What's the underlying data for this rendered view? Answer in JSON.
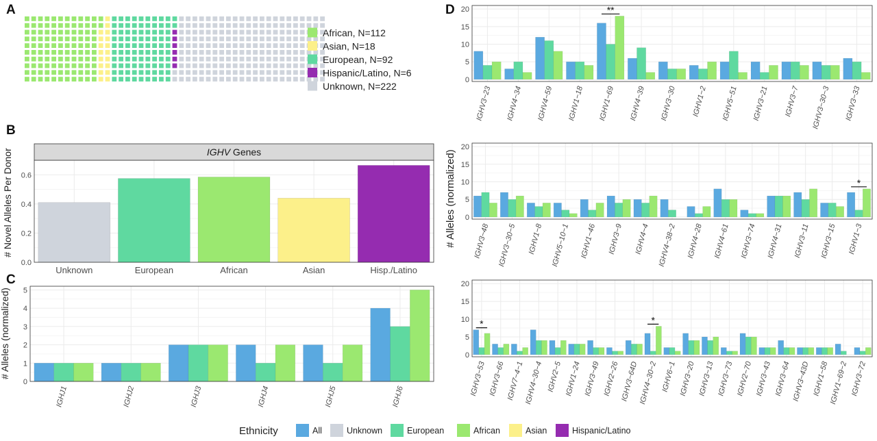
{
  "colors": {
    "All": "#5aa9e0",
    "Unknown": "#cfd4dc",
    "European": "#5fd9a0",
    "African": "#9be870",
    "Asian": "#fcf08a",
    "Hispanic/Latino": "#952cb0",
    "grid": "#ebebeb",
    "panel_border": "#333333"
  },
  "panel_labels": [
    "A",
    "B",
    "C",
    "D"
  ],
  "legend_bottom": {
    "title": "Ethnicity",
    "items": [
      "All",
      "Unknown",
      "European",
      "African",
      "Asian",
      "Hispanic/Latino"
    ]
  },
  "chart_data": [
    {
      "id": "A",
      "type": "waffle",
      "legend": [
        {
          "label": "African, N=112",
          "group": "African",
          "count": 112
        },
        {
          "label": "Asian, N=18",
          "group": "Asian",
          "count": 18
        },
        {
          "label": "European, N=92",
          "group": "European",
          "count": 92
        },
        {
          "label": "Hispanic/Latino, N=6",
          "group": "Hispanic/Latino",
          "count": 6
        },
        {
          "label": "Unknown, N=222",
          "group": "Unknown",
          "count": 222
        }
      ]
    },
    {
      "id": "B",
      "type": "bar",
      "strip_italic": "IGHV",
      "strip_rest": " Genes",
      "ylabel": "# Novel Alleles Per Donor",
      "ylim": [
        0,
        0.7
      ],
      "yticks": [
        "0.0",
        "0.2",
        "0.4",
        "0.6"
      ],
      "categories": [
        "Unknown",
        "European",
        "African",
        "Asian",
        "Hisp./Latino"
      ],
      "groups": [
        "Unknown",
        "European",
        "African",
        "Asian",
        "Hispanic/Latino"
      ],
      "values": [
        0.41,
        0.575,
        0.585,
        0.44,
        0.665
      ]
    },
    {
      "id": "C",
      "type": "bar",
      "ylabel": "# Alleles (normalized)",
      "ylim": [
        0,
        5.2
      ],
      "yticks": [
        "0",
        "1",
        "2",
        "3",
        "4",
        "5"
      ],
      "categories": [
        "IGHJ1",
        "IGHJ2",
        "IGHJ3",
        "IGHJ4",
        "IGHJ5",
        "IGHJ6"
      ],
      "series": [
        {
          "name": "All",
          "values": [
            1,
            1,
            2,
            2,
            2,
            4
          ]
        },
        {
          "name": "European",
          "values": [
            1,
            1,
            2,
            1,
            1,
            3
          ]
        },
        {
          "name": "African",
          "values": [
            1,
            1,
            2,
            2,
            2,
            5
          ]
        }
      ]
    },
    {
      "id": "D1",
      "type": "bar",
      "ylim": [
        0,
        21
      ],
      "yticks": [
        "0",
        "5",
        "10",
        "15",
        "20"
      ],
      "categories": [
        "IGHV3−23",
        "IGHV4−34",
        "IGHV4−59",
        "IGHV1−18",
        "IGHV1−69",
        "IGHV4−39",
        "IGHV3−30",
        "IGHV1−2",
        "IGHV5−51",
        "IGHV3−21",
        "IGHV3−7",
        "IGHV3−30−3",
        "IGHV3−33"
      ],
      "series": [
        {
          "name": "All",
          "values": [
            8,
            3,
            12,
            5,
            16,
            6,
            5,
            4,
            5,
            5,
            5,
            5,
            6
          ]
        },
        {
          "name": "European",
          "values": [
            4,
            5,
            11,
            5,
            10,
            9,
            3,
            3,
            8,
            2,
            5,
            4,
            5
          ]
        },
        {
          "name": "African",
          "values": [
            5,
            2,
            8,
            4,
            18,
            2,
            3,
            5,
            2,
            4,
            4,
            4,
            2
          ]
        }
      ],
      "significance": [
        {
          "category": 4,
          "label": "**"
        }
      ]
    },
    {
      "id": "D2",
      "type": "bar",
      "ylabel": "# Alleles (normalized)",
      "ylim": [
        0,
        21
      ],
      "yticks": [
        "0",
        "5",
        "10",
        "15",
        "20"
      ],
      "categories": [
        "IGHV3−48",
        "IGHV3−30−5",
        "IGHV1−8",
        "IGHV5−10−1",
        "IGHV1−46",
        "IGHV3−9",
        "IGHV4−4",
        "IGHV4−38−2",
        "IGHV4−28",
        "IGHV4−61",
        "IGHV3−74",
        "IGHV4−31",
        "IGHV3−11",
        "IGHV3−15",
        "IGHV1−3"
      ],
      "series": [
        {
          "name": "All",
          "values": [
            6,
            7,
            4,
            4,
            5,
            6,
            5,
            5,
            3,
            8,
            2,
            6,
            7,
            4,
            7
          ]
        },
        {
          "name": "European",
          "values": [
            7,
            5,
            3,
            2,
            2,
            4,
            4,
            2,
            1,
            5,
            1,
            6,
            5,
            4,
            2
          ]
        },
        {
          "name": "African",
          "values": [
            4,
            6,
            4,
            1,
            4,
            5,
            6,
            0,
            3,
            5,
            1,
            6,
            8,
            3,
            8
          ]
        }
      ],
      "significance": [
        {
          "category": 14,
          "label": "*"
        }
      ]
    },
    {
      "id": "D3",
      "type": "bar",
      "ylim": [
        0,
        21
      ],
      "yticks": [
        "0",
        "5",
        "10",
        "15",
        "20"
      ],
      "categories": [
        "IGHV3−53",
        "IGHV3−66",
        "IGHV7−4−1",
        "IGHV4−30−4",
        "IGHV2−5",
        "IGHV1−24",
        "IGHV3−49",
        "IGHV2−26",
        "IGHV3−64D",
        "IGHV4−30−2",
        "IGHV6−1",
        "IGHV3−20",
        "IGHV3−13",
        "IGHV3−73",
        "IGHV2−70",
        "IGHV3−43",
        "IGHV3−64",
        "IGHV3−43D",
        "IGHV1−58",
        "IGHV1−69−2",
        "IGHV3−72"
      ],
      "series": [
        {
          "name": "All",
          "values": [
            7,
            3,
            3,
            7,
            4,
            3,
            4,
            2,
            4,
            6,
            2,
            6,
            5,
            2,
            6,
            2,
            4,
            2,
            2,
            3,
            2
          ]
        },
        {
          "name": "European",
          "values": [
            2,
            2,
            1,
            4,
            2,
            3,
            2,
            1,
            3,
            1,
            2,
            4,
            4,
            1,
            5,
            2,
            2,
            2,
            2,
            1,
            1
          ]
        },
        {
          "name": "African",
          "values": [
            6,
            3,
            2,
            4,
            4,
            3,
            2,
            1,
            3,
            8,
            1,
            4,
            5,
            1,
            5,
            2,
            2,
            2,
            2,
            0,
            2
          ]
        }
      ],
      "significance": [
        {
          "category": 0,
          "label": "*"
        },
        {
          "category": 9,
          "label": "*"
        }
      ]
    }
  ]
}
